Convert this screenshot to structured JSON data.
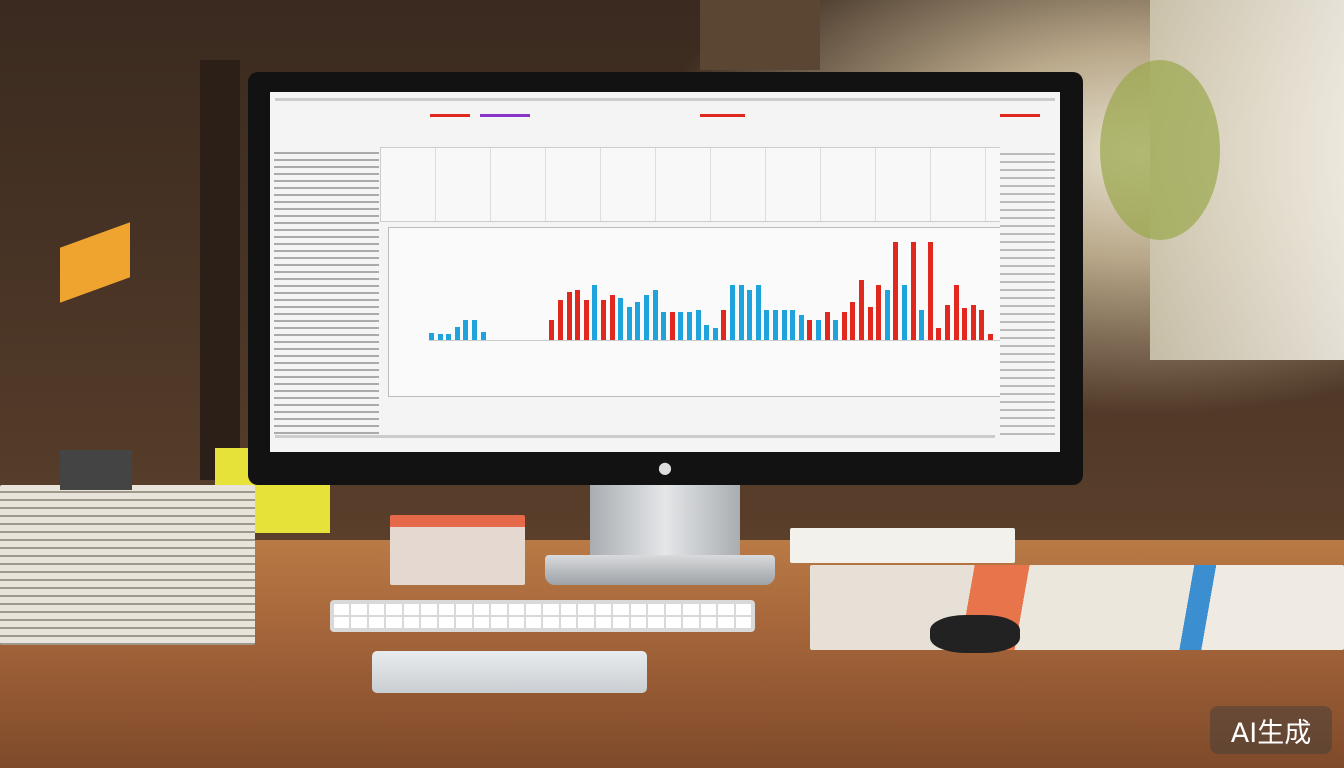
{
  "watermark": {
    "text": "AI生成"
  },
  "colors": {
    "bar_blue": "#1fa3dc",
    "bar_red": "#e0281e",
    "desk": "#a5653a",
    "bezel": "#121212"
  },
  "icons": {
    "logo": "apple-logo-icon"
  }
}
